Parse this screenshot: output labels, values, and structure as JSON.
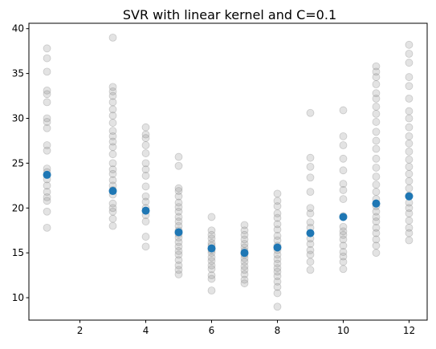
{
  "chart_data": {
    "type": "scatter",
    "title": "SVR with linear kernel and C=0.1",
    "xlabel": "",
    "ylabel": "",
    "xlim": [
      0.45,
      12.55
    ],
    "ylim": [
      7.5,
      40.6
    ],
    "xticks": [
      2,
      4,
      6,
      8,
      10,
      12
    ],
    "yticks": [
      10,
      15,
      20,
      25,
      30,
      35,
      40
    ],
    "grid": false,
    "colors": {
      "raw": "#808080",
      "predicted": "#1f77b4"
    },
    "raw_points": [
      {
        "x": 1,
        "ys": [
          17.8,
          19.6,
          20.8,
          21.2,
          21.8,
          22.5,
          23.2,
          24.0,
          24.4,
          26.4,
          27.0,
          28.9,
          29.6,
          30.0,
          31.8,
          32.7,
          33.1,
          35.2,
          36.7,
          37.8
        ]
      },
      {
        "x": 3,
        "ys": [
          18.0,
          18.8,
          19.6,
          20.0,
          20.5,
          21.5,
          22.0,
          22.5,
          23.1,
          23.8,
          24.3,
          25.0,
          26.0,
          26.8,
          27.4,
          28.0,
          28.6,
          29.5,
          30.3,
          31.0,
          31.8,
          32.5,
          33.0,
          33.5,
          39.0
        ]
      },
      {
        "x": 4,
        "ys": [
          15.7,
          16.8,
          18.5,
          19.2,
          20.0,
          20.7,
          21.3,
          22.4,
          23.6,
          24.3,
          25.0,
          26.1,
          27.0,
          27.8,
          28.2,
          29.0
        ]
      },
      {
        "x": 5,
        "ys": [
          12.6,
          13.1,
          13.6,
          14.2,
          14.8,
          15.2,
          15.7,
          16.2,
          16.7,
          17.1,
          17.5,
          18.0,
          18.5,
          19.0,
          19.6,
          20.1,
          20.6,
          21.3,
          21.9,
          22.2,
          24.7,
          25.7
        ]
      },
      {
        "x": 6,
        "ys": [
          10.8,
          12.1,
          12.5,
          13.2,
          13.6,
          14.1,
          14.5,
          15.0,
          15.3,
          15.8,
          16.1,
          16.6,
          17.0,
          17.5,
          19.0
        ]
      },
      {
        "x": 7,
        "ys": [
          11.6,
          12.0,
          12.6,
          13.1,
          13.5,
          14.0,
          14.4,
          14.8,
          15.2,
          15.6,
          16.0,
          16.5,
          17.0,
          17.5,
          18.1
        ]
      },
      {
        "x": 8,
        "ys": [
          9.0,
          10.5,
          11.2,
          11.8,
          12.4,
          12.9,
          13.3,
          13.8,
          14.3,
          14.8,
          15.3,
          15.8,
          16.4,
          16.9,
          17.6,
          18.2,
          18.9,
          19.4,
          20.2,
          20.8,
          21.6
        ]
      },
      {
        "x": 9,
        "ys": [
          13.1,
          14.0,
          14.8,
          15.3,
          16.0,
          16.6,
          17.2,
          17.8,
          18.4,
          19.4,
          20.0,
          21.8,
          23.4,
          24.6,
          25.6,
          30.6
        ]
      },
      {
        "x": 10,
        "ys": [
          13.2,
          14.0,
          14.6,
          15.1,
          15.8,
          16.5,
          17.0,
          17.4,
          17.9,
          19.1,
          21.0,
          22.0,
          22.7,
          24.2,
          25.5,
          27.0,
          28.0,
          30.9
        ]
      },
      {
        "x": 11,
        "ys": [
          15.0,
          15.8,
          16.5,
          17.2,
          17.8,
          18.5,
          19.0,
          19.6,
          20.2,
          21.0,
          21.8,
          22.6,
          23.5,
          24.5,
          25.5,
          26.6,
          27.5,
          28.5,
          29.6,
          30.5,
          31.3,
          32.2,
          32.8,
          33.8,
          34.6,
          35.2,
          35.8
        ]
      },
      {
        "x": 12,
        "ys": [
          16.4,
          17.2,
          17.8,
          18.6,
          19.4,
          20.0,
          20.6,
          21.4,
          22.2,
          23.0,
          23.8,
          24.6,
          25.4,
          26.3,
          27.2,
          28.0,
          29.0,
          30.0,
          30.8,
          32.2,
          33.6,
          34.6,
          36.2,
          37.2,
          38.2
        ]
      }
    ],
    "predicted_points": [
      {
        "x": 1,
        "y": 23.7
      },
      {
        "x": 3,
        "y": 21.9
      },
      {
        "x": 4,
        "y": 19.7
      },
      {
        "x": 5,
        "y": 17.3
      },
      {
        "x": 6,
        "y": 15.5
      },
      {
        "x": 7,
        "y": 15.0
      },
      {
        "x": 8,
        "y": 15.6
      },
      {
        "x": 9,
        "y": 17.2
      },
      {
        "x": 10,
        "y": 19.0
      },
      {
        "x": 11,
        "y": 20.5
      },
      {
        "x": 12,
        "y": 21.3
      }
    ]
  }
}
